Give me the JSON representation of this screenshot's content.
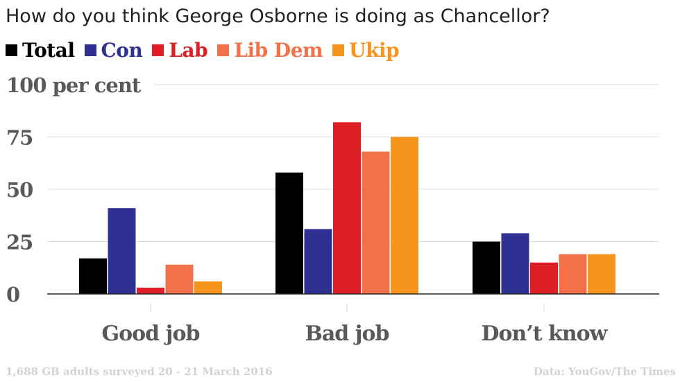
{
  "title": "How do you think George Osborne is doing as Chancellor?",
  "footer": {
    "note": "1,688 GB adults surveyed 20 - 21 March 2016",
    "source": "Data: YouGov/The Times"
  },
  "chart_data": {
    "type": "bar",
    "title": "How do you think George Osborne is doing as Chancellor?",
    "ylabel": "",
    "xlabel": "",
    "ylim": [
      0,
      100
    ],
    "yticks": [
      {
        "value": 0,
        "label": "0"
      },
      {
        "value": 25,
        "label": "25"
      },
      {
        "value": 50,
        "label": "50"
      },
      {
        "value": 75,
        "label": "75"
      },
      {
        "value": 100,
        "label": "100 per cent"
      }
    ],
    "grid": true,
    "legend_position": "top-left",
    "categories": [
      "Good job",
      "Bad job",
      "Don’t know"
    ],
    "series": [
      {
        "name": "Total",
        "color": "#000000",
        "values": [
          17,
          58,
          25
        ]
      },
      {
        "name": "Con",
        "color": "#2e3191",
        "values": [
          41,
          31,
          29
        ]
      },
      {
        "name": "Lab",
        "color": "#de1f26",
        "values": [
          3,
          82,
          15
        ]
      },
      {
        "name": "Lib Dem",
        "color": "#f37148",
        "values": [
          14,
          68,
          19
        ]
      },
      {
        "name": "Ukip",
        "color": "#f7941e",
        "values": [
          6,
          75,
          19
        ]
      }
    ]
  }
}
